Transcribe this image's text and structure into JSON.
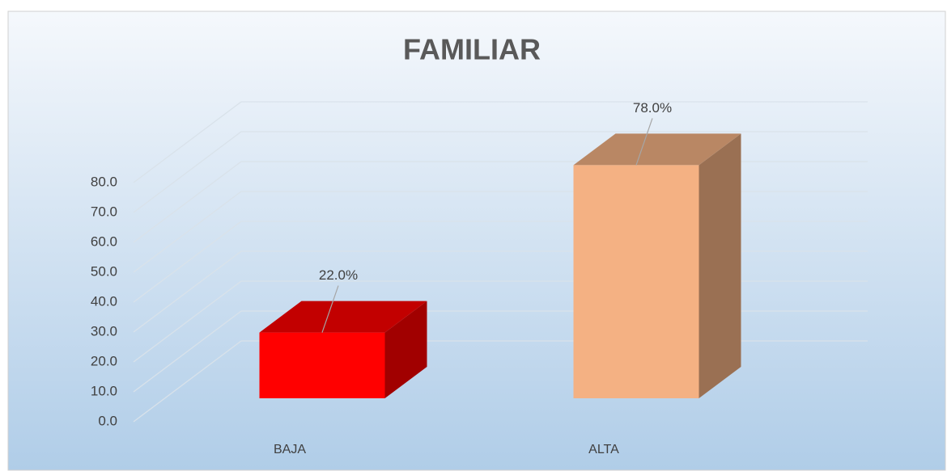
{
  "chart_data": {
    "type": "bar3d",
    "title": "FAMILIAR",
    "categories": [
      "BAJA",
      "ALTA"
    ],
    "values": [
      22.0,
      78.0
    ],
    "value_labels": [
      "22.0%",
      "78.0%"
    ],
    "colors": [
      "#ff0000",
      "#f4b183"
    ],
    "ylim": [
      0,
      80
    ],
    "yticks": [
      {
        "value": 0,
        "label": "0.0"
      },
      {
        "value": 10,
        "label": "10.0"
      },
      {
        "value": 20,
        "label": "20.0"
      },
      {
        "value": 30,
        "label": "30.0"
      },
      {
        "value": 40,
        "label": "40.0"
      },
      {
        "value": 50,
        "label": "50.0"
      },
      {
        "value": 60,
        "label": "60.0"
      },
      {
        "value": 70,
        "label": "70.0"
      },
      {
        "value": 80,
        "label": "80.0"
      }
    ],
    "grid": true
  }
}
